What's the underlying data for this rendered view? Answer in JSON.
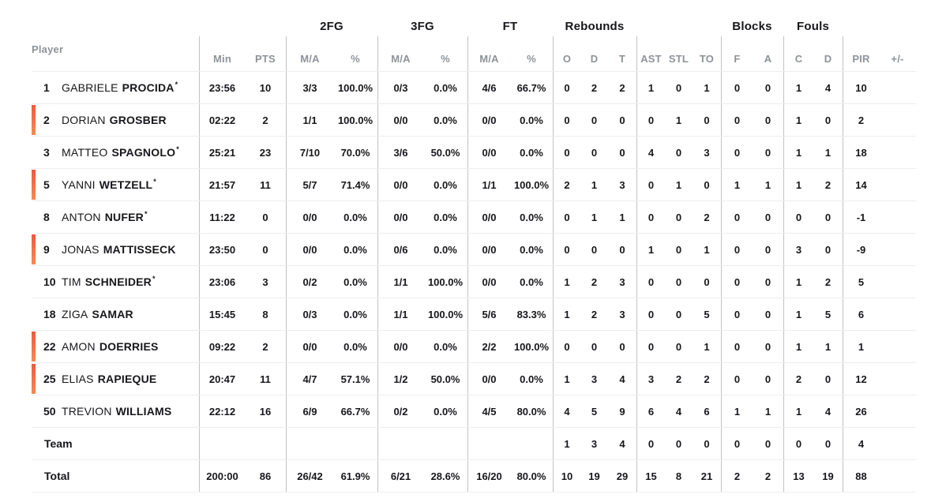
{
  "colors": {
    "on_court_bar_top": "#ee5a3d",
    "on_court_bar_bottom": "#f58c4e",
    "header_gray": "#8e9298",
    "text": "#17171b"
  },
  "table": {
    "group_headers": {
      "fg2": "2FG",
      "fg3": "3FG",
      "ft": "FT",
      "rebounds": "Rebounds",
      "blocks": "Blocks",
      "fouls": "Fouls"
    },
    "column_headers": {
      "player": "Player",
      "min": "Min",
      "pts": "PTS",
      "ma": "M/A",
      "pct": "%",
      "reb_o": "O",
      "reb_d": "D",
      "reb_t": "T",
      "ast": "AST",
      "stl": "STL",
      "to": "TO",
      "blk_f": "F",
      "blk_a": "A",
      "foul_c": "C",
      "foul_d": "D",
      "pir": "PIR",
      "plusminus": "+/-"
    },
    "starter_mark": "*",
    "rows": [
      {
        "type": "player",
        "num": "1",
        "first": "GABRIELE",
        "last": "PROCIDA",
        "starter": true,
        "on_court": false,
        "min": "23:56",
        "pts": "10",
        "fg2_ma": "3/3",
        "fg2_pct": "100.0%",
        "fg3_ma": "0/3",
        "fg3_pct": "0.0%",
        "ft_ma": "4/6",
        "ft_pct": "66.7%",
        "reb_o": "0",
        "reb_d": "2",
        "reb_t": "2",
        "ast": "1",
        "stl": "0",
        "to": "1",
        "blk_f": "0",
        "blk_a": "0",
        "foul_c": "1",
        "foul_d": "4",
        "pir": "10",
        "plusminus": ""
      },
      {
        "type": "player",
        "num": "2",
        "first": "DORIAN",
        "last": "GROSBER",
        "starter": false,
        "on_court": true,
        "min": "02:22",
        "pts": "2",
        "fg2_ma": "1/1",
        "fg2_pct": "100.0%",
        "fg3_ma": "0/0",
        "fg3_pct": "0.0%",
        "ft_ma": "0/0",
        "ft_pct": "0.0%",
        "reb_o": "0",
        "reb_d": "0",
        "reb_t": "0",
        "ast": "0",
        "stl": "1",
        "to": "0",
        "blk_f": "0",
        "blk_a": "0",
        "foul_c": "1",
        "foul_d": "0",
        "pir": "2",
        "plusminus": ""
      },
      {
        "type": "player",
        "num": "3",
        "first": "MATTEO",
        "last": "SPAGNOLO",
        "starter": true,
        "on_court": false,
        "min": "25:21",
        "pts": "23",
        "fg2_ma": "7/10",
        "fg2_pct": "70.0%",
        "fg3_ma": "3/6",
        "fg3_pct": "50.0%",
        "ft_ma": "0/0",
        "ft_pct": "0.0%",
        "reb_o": "0",
        "reb_d": "0",
        "reb_t": "0",
        "ast": "4",
        "stl": "0",
        "to": "3",
        "blk_f": "0",
        "blk_a": "0",
        "foul_c": "1",
        "foul_d": "1",
        "pir": "18",
        "plusminus": ""
      },
      {
        "type": "player",
        "num": "5",
        "first": "YANNI",
        "last": "WETZELL",
        "starter": true,
        "on_court": true,
        "min": "21:57",
        "pts": "11",
        "fg2_ma": "5/7",
        "fg2_pct": "71.4%",
        "fg3_ma": "0/0",
        "fg3_pct": "0.0%",
        "ft_ma": "1/1",
        "ft_pct": "100.0%",
        "reb_o": "2",
        "reb_d": "1",
        "reb_t": "3",
        "ast": "0",
        "stl": "1",
        "to": "0",
        "blk_f": "1",
        "blk_a": "1",
        "foul_c": "1",
        "foul_d": "2",
        "pir": "14",
        "plusminus": ""
      },
      {
        "type": "player",
        "num": "8",
        "first": "ANTON",
        "last": "NUFER",
        "starter": true,
        "on_court": false,
        "min": "11:22",
        "pts": "0",
        "fg2_ma": "0/0",
        "fg2_pct": "0.0%",
        "fg3_ma": "0/0",
        "fg3_pct": "0.0%",
        "ft_ma": "0/0",
        "ft_pct": "0.0%",
        "reb_o": "0",
        "reb_d": "1",
        "reb_t": "1",
        "ast": "0",
        "stl": "0",
        "to": "2",
        "blk_f": "0",
        "blk_a": "0",
        "foul_c": "0",
        "foul_d": "0",
        "pir": "-1",
        "plusminus": ""
      },
      {
        "type": "player",
        "num": "9",
        "first": "JONAS",
        "last": "MATTISSECK",
        "starter": false,
        "on_court": true,
        "min": "23:50",
        "pts": "0",
        "fg2_ma": "0/0",
        "fg2_pct": "0.0%",
        "fg3_ma": "0/6",
        "fg3_pct": "0.0%",
        "ft_ma": "0/0",
        "ft_pct": "0.0%",
        "reb_o": "0",
        "reb_d": "0",
        "reb_t": "0",
        "ast": "1",
        "stl": "0",
        "to": "1",
        "blk_f": "0",
        "blk_a": "0",
        "foul_c": "3",
        "foul_d": "0",
        "pir": "-9",
        "plusminus": ""
      },
      {
        "type": "player",
        "num": "10",
        "first": "TIM",
        "last": "SCHNEIDER",
        "starter": true,
        "on_court": false,
        "min": "23:06",
        "pts": "3",
        "fg2_ma": "0/2",
        "fg2_pct": "0.0%",
        "fg3_ma": "1/1",
        "fg3_pct": "100.0%",
        "ft_ma": "0/0",
        "ft_pct": "0.0%",
        "reb_o": "1",
        "reb_d": "2",
        "reb_t": "3",
        "ast": "0",
        "stl": "0",
        "to": "0",
        "blk_f": "0",
        "blk_a": "0",
        "foul_c": "1",
        "foul_d": "2",
        "pir": "5",
        "plusminus": ""
      },
      {
        "type": "player",
        "num": "18",
        "first": "ZIGA",
        "last": "SAMAR",
        "starter": false,
        "on_court": false,
        "min": "15:45",
        "pts": "8",
        "fg2_ma": "0/3",
        "fg2_pct": "0.0%",
        "fg3_ma": "1/1",
        "fg3_pct": "100.0%",
        "ft_ma": "5/6",
        "ft_pct": "83.3%",
        "reb_o": "1",
        "reb_d": "2",
        "reb_t": "3",
        "ast": "0",
        "stl": "0",
        "to": "5",
        "blk_f": "0",
        "blk_a": "0",
        "foul_c": "1",
        "foul_d": "5",
        "pir": "6",
        "plusminus": ""
      },
      {
        "type": "player",
        "num": "22",
        "first": "AMON",
        "last": "DOERRIES",
        "starter": false,
        "on_court": true,
        "min": "09:22",
        "pts": "2",
        "fg2_ma": "0/0",
        "fg2_pct": "0.0%",
        "fg3_ma": "0/0",
        "fg3_pct": "0.0%",
        "ft_ma": "2/2",
        "ft_pct": "100.0%",
        "reb_o": "0",
        "reb_d": "0",
        "reb_t": "0",
        "ast": "0",
        "stl": "0",
        "to": "1",
        "blk_f": "0",
        "blk_a": "0",
        "foul_c": "1",
        "foul_d": "1",
        "pir": "1",
        "plusminus": ""
      },
      {
        "type": "player",
        "num": "25",
        "first": "ELIAS",
        "last": "RAPIEQUE",
        "starter": false,
        "on_court": true,
        "min": "20:47",
        "pts": "11",
        "fg2_ma": "4/7",
        "fg2_pct": "57.1%",
        "fg3_ma": "1/2",
        "fg3_pct": "50.0%",
        "ft_ma": "0/0",
        "ft_pct": "0.0%",
        "reb_o": "1",
        "reb_d": "3",
        "reb_t": "4",
        "ast": "3",
        "stl": "2",
        "to": "2",
        "blk_f": "0",
        "blk_a": "0",
        "foul_c": "2",
        "foul_d": "0",
        "pir": "12",
        "plusminus": ""
      },
      {
        "type": "player",
        "num": "50",
        "first": "TREVION",
        "last": "WILLIAMS",
        "starter": false,
        "on_court": false,
        "min": "22:12",
        "pts": "16",
        "fg2_ma": "6/9",
        "fg2_pct": "66.7%",
        "fg3_ma": "0/2",
        "fg3_pct": "0.0%",
        "ft_ma": "4/5",
        "ft_pct": "80.0%",
        "reb_o": "4",
        "reb_d": "5",
        "reb_t": "9",
        "ast": "6",
        "stl": "4",
        "to": "6",
        "blk_f": "1",
        "blk_a": "1",
        "foul_c": "1",
        "foul_d": "4",
        "pir": "26",
        "plusminus": ""
      },
      {
        "type": "team",
        "label": "Team",
        "min": "",
        "pts": "",
        "fg2_ma": "",
        "fg2_pct": "",
        "fg3_ma": "",
        "fg3_pct": "",
        "ft_ma": "",
        "ft_pct": "",
        "reb_o": "1",
        "reb_d": "3",
        "reb_t": "4",
        "ast": "0",
        "stl": "0",
        "to": "0",
        "blk_f": "0",
        "blk_a": "0",
        "foul_c": "0",
        "foul_d": "0",
        "pir": "4",
        "plusminus": ""
      },
      {
        "type": "total",
        "label": "Total",
        "min": "200:00",
        "pts": "86",
        "fg2_ma": "26/42",
        "fg2_pct": "61.9%",
        "fg3_ma": "6/21",
        "fg3_pct": "28.6%",
        "ft_ma": "16/20",
        "ft_pct": "80.0%",
        "reb_o": "10",
        "reb_d": "19",
        "reb_t": "29",
        "ast": "15",
        "stl": "8",
        "to": "21",
        "blk_f": "2",
        "blk_a": "2",
        "foul_c": "13",
        "foul_d": "19",
        "pir": "88",
        "plusminus": ""
      }
    ]
  }
}
